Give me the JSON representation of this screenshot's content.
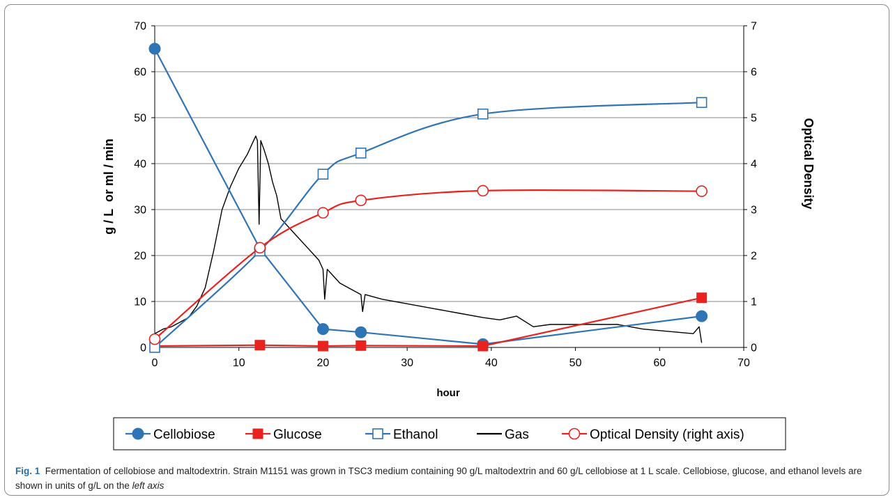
{
  "chart_data": {
    "type": "line",
    "xlabel": "hour",
    "ylabel_left": "g / L  or ml / min",
    "ylabel_right": "Optical Density",
    "xlim": [
      0,
      70
    ],
    "ylim_left": [
      0,
      70
    ],
    "ylim_right": [
      0,
      7
    ],
    "x_ticks": [
      "0",
      "10",
      "20",
      "30",
      "40",
      "50",
      "60",
      "70"
    ],
    "y_ticks_left": [
      "0",
      "10",
      "20",
      "30",
      "40",
      "50",
      "60",
      "70"
    ],
    "y_ticks_right": [
      "0",
      "1",
      "2",
      "3",
      "4",
      "5",
      "6",
      "7"
    ],
    "grid": true,
    "legend_position": "bottom",
    "series": [
      {
        "name": "Cellobiose",
        "axis": "left",
        "color": "#2f74b5",
        "marker": "filled-circle",
        "smooth": false,
        "x": [
          0,
          12.5,
          20,
          24.5,
          39,
          65
        ],
        "y": [
          65,
          21.5,
          4,
          3.3,
          0.7,
          6.8
        ]
      },
      {
        "name": "Glucose",
        "axis": "left",
        "color": "#e8231f",
        "marker": "filled-square",
        "smooth": false,
        "x": [
          0,
          12.5,
          20,
          24.5,
          39,
          65
        ],
        "y": [
          0.3,
          0.5,
          0.3,
          0.4,
          0.3,
          10.8
        ]
      },
      {
        "name": "Ethanol",
        "axis": "left",
        "color": "#2f74b5",
        "marker": "open-square",
        "smooth": true,
        "x": [
          0,
          12.5,
          20,
          24.5,
          39,
          65
        ],
        "y": [
          0,
          21,
          37.7,
          42.3,
          50.8,
          53.3
        ]
      },
      {
        "name": "Gas",
        "axis": "left",
        "color": "#000000",
        "marker": "none",
        "smooth": false,
        "x": [
          0,
          1,
          2,
          3,
          4,
          5,
          6,
          7,
          8,
          9,
          10,
          11,
          11.5,
          12,
          12.2,
          12.4,
          12.6,
          13,
          13.5,
          14,
          14.5,
          15,
          16,
          17,
          18,
          19,
          19.5,
          20,
          20.2,
          20.5,
          21,
          22,
          24,
          24.5,
          24.7,
          25,
          27,
          30,
          33,
          36,
          39,
          41,
          43,
          45,
          47,
          49,
          51,
          53,
          55,
          58,
          61,
          64,
          64.7,
          65
        ],
        "y": [
          3,
          4,
          4.5,
          5.5,
          6.5,
          9,
          13,
          21,
          30,
          35,
          39,
          42,
          44,
          46,
          45,
          26.8,
          45,
          43,
          40,
          36,
          33,
          28,
          26,
          24,
          22,
          20,
          19,
          17,
          10.5,
          17,
          16,
          14,
          12,
          11.5,
          7.8,
          11.5,
          10.5,
          9.5,
          8.5,
          7.5,
          6.5,
          6,
          6.8,
          4.5,
          5,
          5,
          5,
          5,
          5,
          4,
          3.5,
          3,
          4.5,
          1
        ]
      },
      {
        "name": "Optical Density (right axis)",
        "axis": "right",
        "color": "#e8231f",
        "marker": "open-circle",
        "smooth": true,
        "x": [
          0,
          12.5,
          20,
          24.5,
          39,
          65
        ],
        "y": [
          0.18,
          2.17,
          2.93,
          3.2,
          3.41,
          3.4
        ]
      }
    ]
  },
  "caption": {
    "label": "Fig. 1",
    "text": "Fermentation of cellobiose and maltodextrin. Strain M1151 was grown in TSC3 medium containing 90 g/L maltodextrin and 60 g/L cellobiose at 1 L scale. Cellobiose, glucose, and ethanol levels are shown in units of g/L on the",
    "text_italic": "left axis"
  }
}
